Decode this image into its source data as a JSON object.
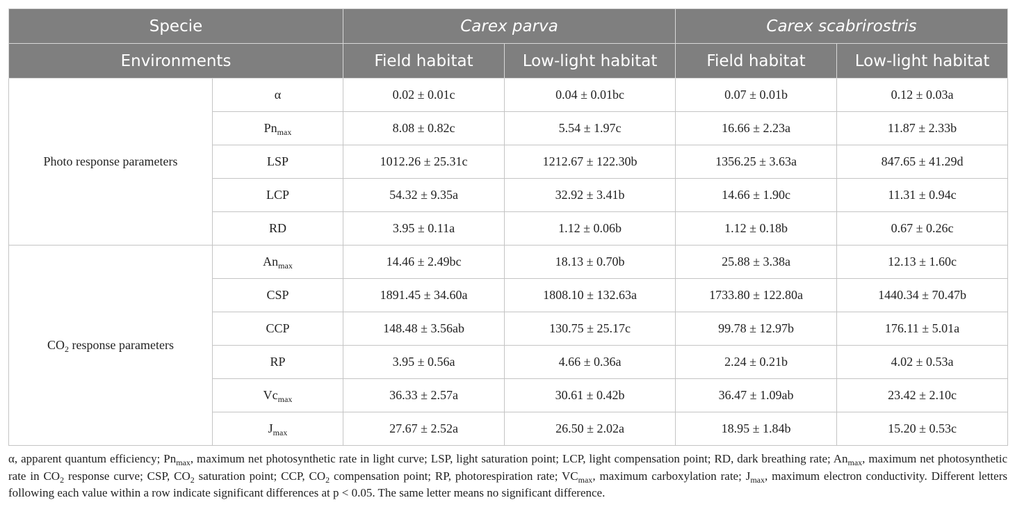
{
  "table": {
    "header": {
      "specie": "Specie",
      "species": [
        "Carex parva",
        "Carex scabrirostris"
      ],
      "environments": "Environments",
      "habitats": [
        "Field habitat",
        "Low-light habitat",
        "Field habitat",
        "Low-light habitat"
      ]
    },
    "groups": [
      {
        "label": [
          "Photo response parameters"
        ],
        "rows": [
          {
            "param": [
              "α"
            ],
            "values": [
              "0.02 ± 0.01c",
              "0.04 ± 0.01bc",
              "0.07 ± 0.01b",
              "0.12 ± 0.03a"
            ]
          },
          {
            "param": [
              "Pn",
              "max"
            ],
            "values": [
              "8.08 ± 0.82c",
              "5.54 ± 1.97c",
              "16.66 ± 2.23a",
              "11.87 ± 2.33b"
            ]
          },
          {
            "param": [
              "LSP"
            ],
            "values": [
              "1012.26 ± 25.31c",
              "1212.67 ± 122.30b",
              "1356.25 ± 3.63a",
              "847.65 ± 41.29d"
            ]
          },
          {
            "param": [
              "LCP"
            ],
            "values": [
              "54.32 ± 9.35a",
              "32.92 ± 3.41b",
              "14.66 ± 1.90c",
              "11.31 ± 0.94c"
            ]
          },
          {
            "param": [
              "RD"
            ],
            "values": [
              "3.95 ± 0.11a",
              "1.12 ± 0.06b",
              "1.12 ± 0.18b",
              "0.67 ± 0.26c"
            ]
          }
        ]
      },
      {
        "label": [
          "CO",
          "2",
          " response parameters"
        ],
        "rows": [
          {
            "param": [
              "An",
              "max"
            ],
            "values": [
              "14.46 ± 2.49bc",
              "18.13 ± 0.70b",
              "25.88 ± 3.38a",
              "12.13 ± 1.60c"
            ]
          },
          {
            "param": [
              "CSP"
            ],
            "values": [
              "1891.45 ± 34.60a",
              "1808.10 ± 132.63a",
              "1733.80 ± 122.80a",
              "1440.34 ± 70.47b"
            ]
          },
          {
            "param": [
              "CCP"
            ],
            "values": [
              "148.48 ± 3.56ab",
              "130.75 ± 25.17c",
              "99.78 ± 12.97b",
              "176.11 ± 5.01a"
            ]
          },
          {
            "param": [
              "RP"
            ],
            "values": [
              "3.95 ± 0.56a",
              "4.66 ± 0.36a",
              "2.24 ± 0.21b",
              "4.02 ± 0.53a"
            ]
          },
          {
            "param": [
              "Vc",
              "max"
            ],
            "values": [
              "36.33 ± 2.57a",
              "30.61 ± 0.42b",
              "36.47 ± 1.09ab",
              "23.42 ± 2.10c"
            ]
          },
          {
            "param": [
              "J",
              "max"
            ],
            "values": [
              "27.67 ± 2.52a",
              "26.50 ± 2.02a",
              "18.95 ± 1.84b",
              "15.20 ± 0.53c"
            ]
          }
        ]
      }
    ],
    "footnote": [
      "α, apparent quantum efficiency; Pn",
      "max",
      ", maximum net photosynthetic rate in light curve; LSP, light saturation point; LCP, light compensation point; RD, dark breathing rate; An",
      "max",
      ", maximum net photosynthetic rate in CO",
      "2",
      " response curve; CSP, CO",
      "2",
      " saturation point; CCP, CO",
      "2",
      " compensation point; RP, photorespiration rate; VC",
      "max",
      ", maximum carboxylation rate; J",
      "max",
      ", maximum electron conductivity. Different letters following each value within a row indicate significant differences at p < 0.05. The same letter means no significant difference."
    ]
  }
}
